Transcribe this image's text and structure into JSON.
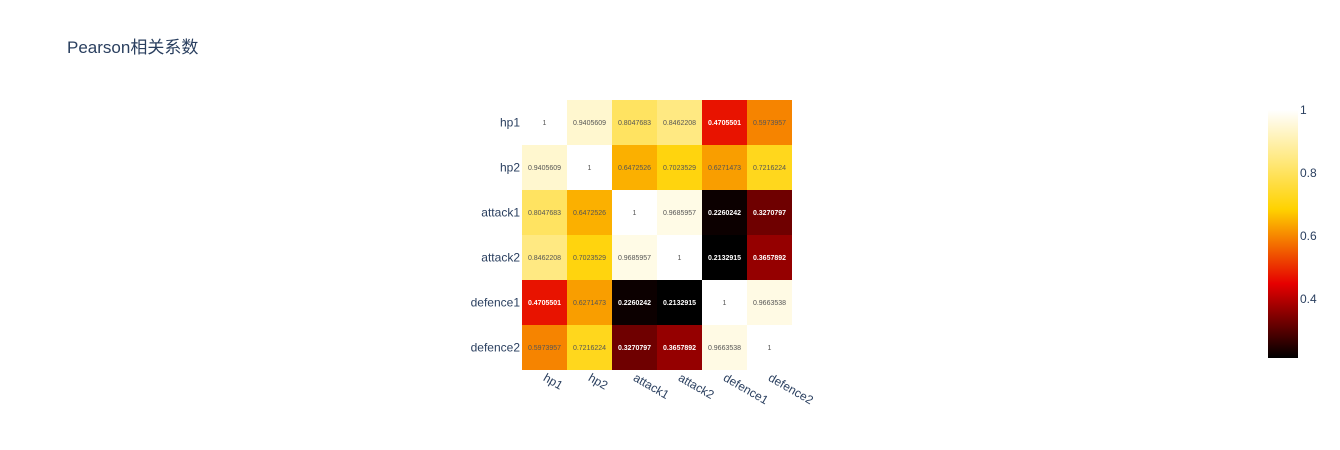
{
  "chart_data": {
    "type": "heatmap",
    "title": "Pearson相关系数",
    "x": [
      "hp1",
      "hp2",
      "attack1",
      "attack2",
      "defence1",
      "defence2"
    ],
    "y": [
      "hp1",
      "hp2",
      "attack1",
      "attack2",
      "defence1",
      "defence2"
    ],
    "z": [
      [
        1,
        0.9405609,
        0.8047683,
        0.8462208,
        0.4705501,
        0.5973957
      ],
      [
        0.9405609,
        1,
        0.6472526,
        0.7023529,
        0.6271473,
        0.7216224
      ],
      [
        0.8047683,
        0.6472526,
        1,
        0.9685957,
        0.2260242,
        0.3270797
      ],
      [
        0.8462208,
        0.7023529,
        0.9685957,
        1,
        0.2132915,
        0.3657892
      ],
      [
        0.4705501,
        0.6271473,
        0.2260242,
        0.2132915,
        1,
        0.9663538
      ],
      [
        0.5973957,
        0.7216224,
        0.3270797,
        0.3657892,
        0.9663538,
        1
      ]
    ],
    "z_labels": [
      [
        "1",
        "0.9405609",
        "0.8047683",
        "0.8462208",
        "0.4705501",
        "0.5973957"
      ],
      [
        "0.9405609",
        "1",
        "0.6472526",
        "0.7023529",
        "0.6271473",
        "0.7216224"
      ],
      [
        "0.8047683",
        "0.6472526",
        "1",
        "0.9685957",
        "0.2260242",
        "0.3270797"
      ],
      [
        "0.8462208",
        "0.7023529",
        "0.9685957",
        "1",
        "0.2132915",
        "0.3657892"
      ],
      [
        "0.4705501",
        "0.6271473",
        "0.2260242",
        "0.2132915",
        "1",
        "0.9663538"
      ],
      [
        "0.5973957",
        "0.7216224",
        "0.3270797",
        "0.3657892",
        "0.9663538",
        "1"
      ]
    ],
    "zmin": 0.2132915,
    "zmax": 1,
    "colorscale": "hot",
    "colorbar": {
      "ticks": [
        0.4,
        0.6,
        0.8,
        1
      ],
      "tick_labels": [
        "0.4",
        "0.6",
        "0.8",
        "1"
      ]
    }
  }
}
